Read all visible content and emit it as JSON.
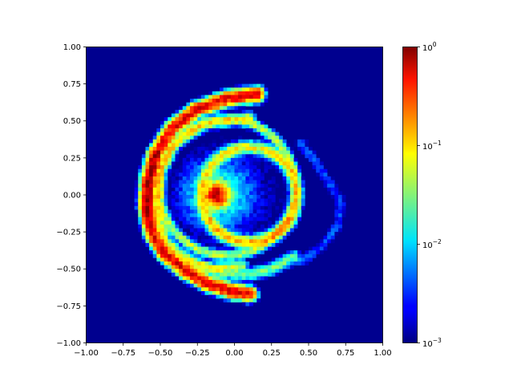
{
  "chart_data": {
    "type": "heatmap",
    "title": "",
    "xlabel": "",
    "ylabel": "",
    "xlim": [
      -1.0,
      1.0
    ],
    "ylim": [
      -1.0,
      1.0
    ],
    "bins": [
      80,
      80
    ],
    "x_ticks": [
      -1.0,
      -0.75,
      -0.5,
      -0.25,
      0.0,
      0.25,
      0.5,
      0.75,
      1.0
    ],
    "x_tick_labels": [
      "−1.00",
      "−0.75",
      "−0.50",
      "−0.25",
      "0.00",
      "0.25",
      "0.50",
      "0.75",
      "1.00"
    ],
    "y_ticks": [
      1.0,
      0.75,
      0.5,
      0.25,
      0.0,
      -0.25,
      -0.5,
      -0.75,
      -1.0
    ],
    "y_tick_labels": [
      "1.00",
      "0.75",
      "0.50",
      "0.25",
      "0.00",
      "−0.25",
      "−0.50",
      "−0.75",
      "−1.00"
    ],
    "colormap": "jet",
    "color_scale": "log",
    "color_range": [
      0.001,
      1.0
    ],
    "background_color": "#00008f",
    "colorbar": {
      "ticks": [
        1,
        0.1,
        0.01,
        0.001
      ],
      "tick_labels": [
        {
          "base": "10",
          "exp": "0"
        },
        {
          "base": "10",
          "exp": "−1"
        },
        {
          "base": "10",
          "exp": "−2"
        },
        {
          "base": "10",
          "exp": "−3"
        }
      ]
    },
    "structures": [
      {
        "name": "outer-spiral-arm",
        "description": "arc from (0.15,0.68) sweeping left through (-0.58,0.0) down to (0.1,-0.67)",
        "peak_density": 0.5
      },
      {
        "name": "middle-ring",
        "center": [
          -0.05,
          0.05
        ],
        "radius": 0.46,
        "peak_density": 0.06
      },
      {
        "name": "inner-ring",
        "center": [
          0.1,
          0.0
        ],
        "radius": 0.32,
        "peak_density": 0.1
      },
      {
        "name": "core",
        "center": [
          -0.12,
          0.0
        ],
        "peak_density": 0.6
      }
    ]
  }
}
